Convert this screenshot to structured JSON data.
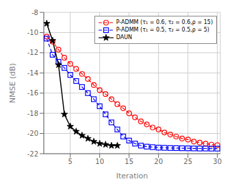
{
  "chart_data": {
    "type": "line",
    "title": "",
    "xlabel": "Iteration",
    "ylabel": "NMSE (dB)",
    "xlim": [
      0.5,
      30.5
    ],
    "ylim": [
      -22,
      -8
    ],
    "xticks": [
      5,
      10,
      15,
      20,
      25,
      30
    ],
    "yticks": [
      -22,
      -20,
      -18,
      -16,
      -14,
      -12,
      -10,
      -8
    ],
    "grid": true,
    "legend": "upper right",
    "series": [
      {
        "name": "P-ADMM (τ₁ = 0.6, τ₂ = 0.6,ρ = 15)",
        "color": "#ff0000",
        "marker": "circle",
        "line_style": "dashed",
        "x": [
          1,
          2,
          3,
          4,
          5,
          6,
          7,
          8,
          9,
          10,
          11,
          12,
          13,
          14,
          15,
          16,
          17,
          18,
          19,
          20,
          21,
          22,
          23,
          24,
          25,
          26,
          27,
          28,
          29,
          30
        ],
        "values": [
          -10.4,
          -10.9,
          -11.7,
          -12.5,
          -13.1,
          -13.6,
          -14.1,
          -14.6,
          -15.2,
          -15.7,
          -16.1,
          -16.6,
          -17.1,
          -17.5,
          -18.0,
          -18.4,
          -18.8,
          -19.1,
          -19.4,
          -19.6,
          -19.9,
          -20.1,
          -20.3,
          -20.5,
          -20.6,
          -20.8,
          -20.9,
          -21.0,
          -21.1,
          -21.15
        ]
      },
      {
        "name": "P-ADMM (τ₁ = 0.5, τ₂ = 0.5,ρ = 5)",
        "color": "#0000ff",
        "marker": "square",
        "line_style": "dashed",
        "x": [
          1,
          2,
          3,
          4,
          5,
          6,
          7,
          8,
          9,
          10,
          11,
          12,
          13,
          14,
          15,
          16,
          17,
          18,
          19,
          20,
          21,
          22,
          23,
          24,
          25,
          26,
          27,
          28,
          29,
          30
        ],
        "values": [
          -10.6,
          -12.2,
          -12.9,
          -13.5,
          -14.2,
          -14.8,
          -15.4,
          -16.0,
          -16.6,
          -17.3,
          -18.1,
          -18.9,
          -19.6,
          -20.3,
          -20.7,
          -21.0,
          -21.2,
          -21.3,
          -21.35,
          -21.4,
          -21.42,
          -21.44,
          -21.45,
          -21.46,
          -21.47,
          -21.48,
          -21.49,
          -21.49,
          -21.5,
          -21.5
        ]
      },
      {
        "name": "DAUN",
        "color": "#000000",
        "marker": "star",
        "line_style": "solid",
        "x": [
          1,
          2,
          3,
          4,
          5,
          6,
          7,
          8,
          9,
          10,
          11,
          12,
          13
        ],
        "values": [
          -9.1,
          -10.8,
          -13.2,
          -18.1,
          -19.3,
          -19.8,
          -20.2,
          -20.5,
          -20.8,
          -21.0,
          -21.1,
          -21.2,
          -21.2
        ]
      }
    ]
  }
}
